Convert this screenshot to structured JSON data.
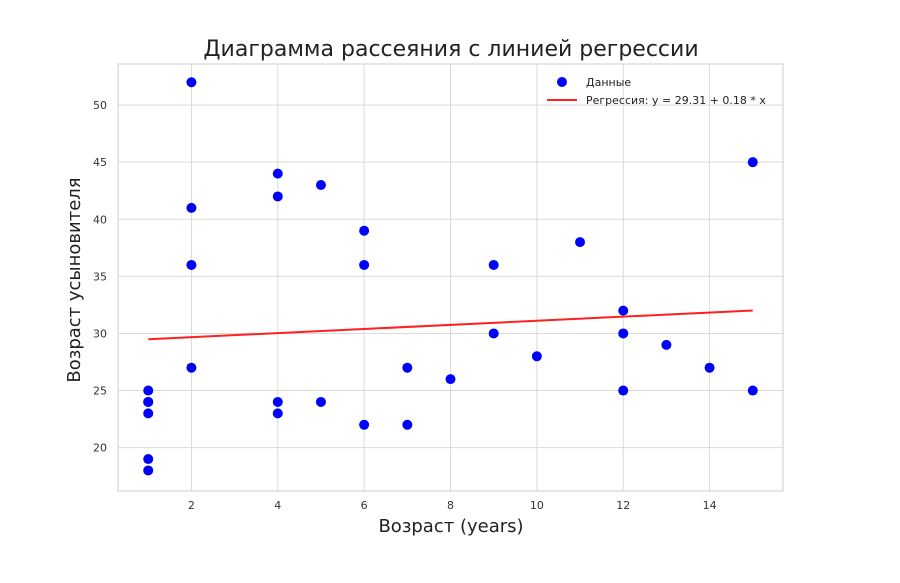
{
  "chart_data": {
    "type": "scatter",
    "title": "Диаграмма рассеяния с линией регрессии",
    "xlabel": "Возраст (years)",
    "ylabel": "Возраст усыновителя",
    "xlim": [
      0.3,
      15.7
    ],
    "ylim": [
      16.2,
      53.6
    ],
    "xticks": [
      2,
      4,
      6,
      8,
      10,
      12,
      14
    ],
    "yticks": [
      20,
      25,
      30,
      35,
      40,
      45,
      50
    ],
    "grid": true,
    "legend_position": "top-right",
    "colors": {
      "scatter": "#0000ff",
      "regression": "#ff2020",
      "grid": "#d9d9d9",
      "frame": "#cccccc"
    },
    "series": [
      {
        "name": "Данные",
        "kind": "scatter",
        "x": [
          1,
          1,
          1,
          1,
          1,
          1,
          2,
          2,
          2,
          2,
          4,
          4,
          4,
          4,
          5,
          5,
          6,
          6,
          6,
          7,
          7,
          8,
          9,
          9,
          10,
          11,
          12,
          12,
          12,
          13,
          14,
          15,
          15
        ],
        "y": [
          25,
          24,
          23,
          19,
          18,
          24,
          52,
          41,
          36,
          27,
          44,
          42,
          24,
          23,
          43,
          24,
          39,
          36,
          22,
          27,
          22,
          26,
          36,
          30,
          28,
          38,
          32,
          30,
          25,
          29,
          27,
          45,
          25
        ]
      },
      {
        "name": "Регрессия: y = 29.31 + 0.18 * x",
        "kind": "line",
        "intercept": 29.31,
        "slope": 0.18,
        "x_range": [
          1,
          15
        ]
      }
    ]
  }
}
